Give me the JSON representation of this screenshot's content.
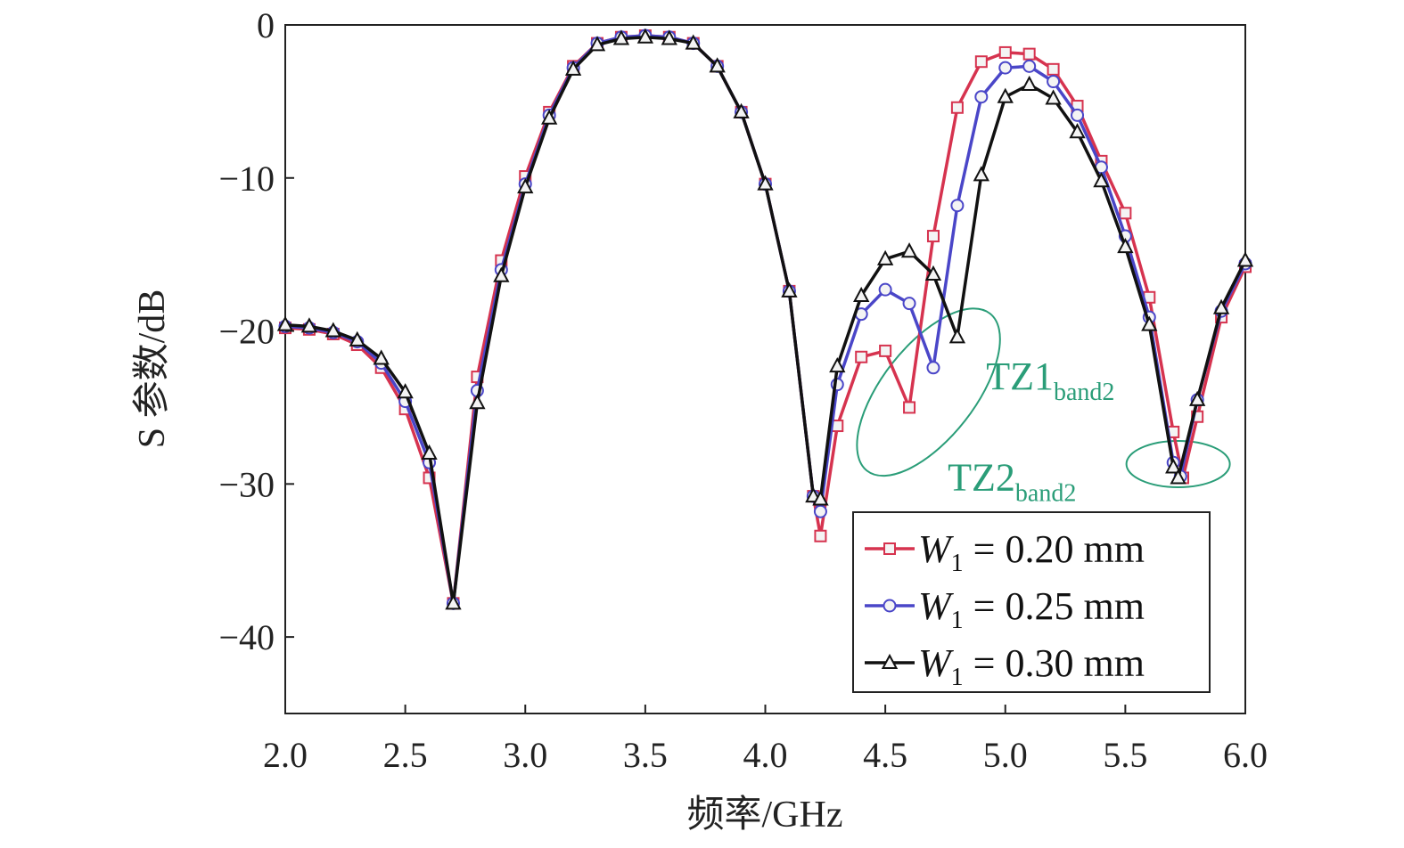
{
  "chart_data": {
    "type": "line",
    "xlabel": "频率/GHz",
    "ylabel": "S 参数/dB",
    "xlim": [
      2.0,
      6.0
    ],
    "ylim": [
      -45,
      0
    ],
    "xticks": [
      "2.0",
      "2.5",
      "3.0",
      "3.5",
      "4.0",
      "4.5",
      "5.0",
      "5.5",
      "6.0"
    ],
    "yticks": [
      "0",
      "−10",
      "−20",
      "−30",
      "−40"
    ],
    "legend_position": "bottom-right",
    "series": [
      {
        "name_var": "W",
        "name_sub": "1",
        "name_rest": " = 0.20 mm",
        "color": "#d6334f",
        "marker": "square",
        "points": [
          [
            2.0,
            -19.8
          ],
          [
            2.1,
            -19.9
          ],
          [
            2.2,
            -20.2
          ],
          [
            2.3,
            -20.9
          ],
          [
            2.4,
            -22.4
          ],
          [
            2.5,
            -25.1
          ],
          [
            2.6,
            -29.6
          ],
          [
            2.7,
            -37.8
          ],
          [
            2.8,
            -23.0
          ],
          [
            2.9,
            -15.4
          ],
          [
            3.0,
            -9.9
          ],
          [
            3.1,
            -5.7
          ],
          [
            3.2,
            -2.7
          ],
          [
            3.3,
            -1.2
          ],
          [
            3.4,
            -0.8
          ],
          [
            3.5,
            -0.7
          ],
          [
            3.6,
            -0.8
          ],
          [
            3.7,
            -1.2
          ],
          [
            3.8,
            -2.7
          ],
          [
            3.9,
            -5.7
          ],
          [
            4.0,
            -10.4
          ],
          [
            4.1,
            -17.4
          ],
          [
            4.2,
            -30.8
          ],
          [
            4.23,
            -33.4
          ],
          [
            4.3,
            -26.2
          ],
          [
            4.4,
            -21.7
          ],
          [
            4.5,
            -21.3
          ],
          [
            4.6,
            -25.0
          ],
          [
            4.7,
            -13.8
          ],
          [
            4.8,
            -5.4
          ],
          [
            4.9,
            -2.4
          ],
          [
            5.0,
            -1.8
          ],
          [
            5.1,
            -1.9
          ],
          [
            5.2,
            -2.9
          ],
          [
            5.3,
            -5.3
          ],
          [
            5.4,
            -8.9
          ],
          [
            5.5,
            -12.3
          ],
          [
            5.6,
            -17.8
          ],
          [
            5.7,
            -26.6
          ],
          [
            5.74,
            -29.6
          ],
          [
            5.8,
            -25.6
          ],
          [
            5.9,
            -19.1
          ],
          [
            6.0,
            -15.8
          ]
        ]
      },
      {
        "name_var": "W",
        "name_sub": "1",
        "name_rest": " = 0.25 mm",
        "color": "#4a46c8",
        "marker": "circle",
        "points": [
          [
            2.0,
            -19.7
          ],
          [
            2.1,
            -19.8
          ],
          [
            2.2,
            -20.1
          ],
          [
            2.3,
            -20.7
          ],
          [
            2.4,
            -22.1
          ],
          [
            2.5,
            -24.6
          ],
          [
            2.6,
            -28.6
          ],
          [
            2.7,
            -37.8
          ],
          [
            2.8,
            -23.9
          ],
          [
            2.9,
            -16.0
          ],
          [
            3.0,
            -10.4
          ],
          [
            3.1,
            -5.9
          ],
          [
            3.2,
            -2.8
          ],
          [
            3.3,
            -1.2
          ],
          [
            3.4,
            -0.8
          ],
          [
            3.5,
            -0.7
          ],
          [
            3.6,
            -0.8
          ],
          [
            3.7,
            -1.2
          ],
          [
            3.8,
            -2.7
          ],
          [
            3.9,
            -5.7
          ],
          [
            4.0,
            -10.4
          ],
          [
            4.1,
            -17.4
          ],
          [
            4.2,
            -30.8
          ],
          [
            4.23,
            -31.8
          ],
          [
            4.3,
            -23.5
          ],
          [
            4.4,
            -18.9
          ],
          [
            4.5,
            -17.3
          ],
          [
            4.6,
            -18.2
          ],
          [
            4.7,
            -22.4
          ],
          [
            4.8,
            -11.8
          ],
          [
            4.9,
            -4.7
          ],
          [
            5.0,
            -2.8
          ],
          [
            5.1,
            -2.7
          ],
          [
            5.2,
            -3.7
          ],
          [
            5.3,
            -5.9
          ],
          [
            5.4,
            -9.3
          ],
          [
            5.5,
            -13.8
          ],
          [
            5.6,
            -19.1
          ],
          [
            5.7,
            -28.6
          ],
          [
            5.73,
            -29.5
          ],
          [
            5.8,
            -24.5
          ],
          [
            5.9,
            -18.7
          ],
          [
            6.0,
            -15.6
          ]
        ]
      },
      {
        "name_var": "W",
        "name_sub": "1",
        "name_rest": " = 0.30 mm",
        "color": "#111111",
        "marker": "triangle",
        "points": [
          [
            2.0,
            -19.6
          ],
          [
            2.1,
            -19.7
          ],
          [
            2.2,
            -20.0
          ],
          [
            2.3,
            -20.6
          ],
          [
            2.4,
            -21.8
          ],
          [
            2.5,
            -24.0
          ],
          [
            2.6,
            -28.0
          ],
          [
            2.7,
            -37.8
          ],
          [
            2.8,
            -24.7
          ],
          [
            2.9,
            -16.4
          ],
          [
            3.0,
            -10.6
          ],
          [
            3.1,
            -6.1
          ],
          [
            3.2,
            -2.9
          ],
          [
            3.3,
            -1.3
          ],
          [
            3.4,
            -0.9
          ],
          [
            3.5,
            -0.8
          ],
          [
            3.6,
            -0.9
          ],
          [
            3.7,
            -1.2
          ],
          [
            3.8,
            -2.7
          ],
          [
            3.9,
            -5.7
          ],
          [
            4.0,
            -10.4
          ],
          [
            4.1,
            -17.4
          ],
          [
            4.2,
            -30.8
          ],
          [
            4.23,
            -31.0
          ],
          [
            4.3,
            -22.3
          ],
          [
            4.4,
            -17.7
          ],
          [
            4.5,
            -15.3
          ],
          [
            4.6,
            -14.8
          ],
          [
            4.7,
            -16.3
          ],
          [
            4.8,
            -20.4
          ],
          [
            4.9,
            -9.8
          ],
          [
            5.0,
            -4.7
          ],
          [
            5.1,
            -3.9
          ],
          [
            5.2,
            -4.8
          ],
          [
            5.3,
            -7.0
          ],
          [
            5.4,
            -10.2
          ],
          [
            5.5,
            -14.5
          ],
          [
            5.6,
            -19.6
          ],
          [
            5.7,
            -28.9
          ],
          [
            5.72,
            -29.6
          ],
          [
            5.8,
            -24.5
          ],
          [
            5.9,
            -18.5
          ],
          [
            6.0,
            -15.4
          ]
        ]
      }
    ],
    "annotations": [
      {
        "main": "TZ1",
        "sub": "band2",
        "x": 4.92,
        "y": -23.0
      },
      {
        "main": "TZ2",
        "sub": "band2",
        "x": 4.76,
        "y": -29.6
      }
    ],
    "ellipses": [
      {
        "cx": 4.68,
        "cy": -24.0
      },
      {
        "cx": 5.72,
        "cy": -28.7
      }
    ]
  }
}
